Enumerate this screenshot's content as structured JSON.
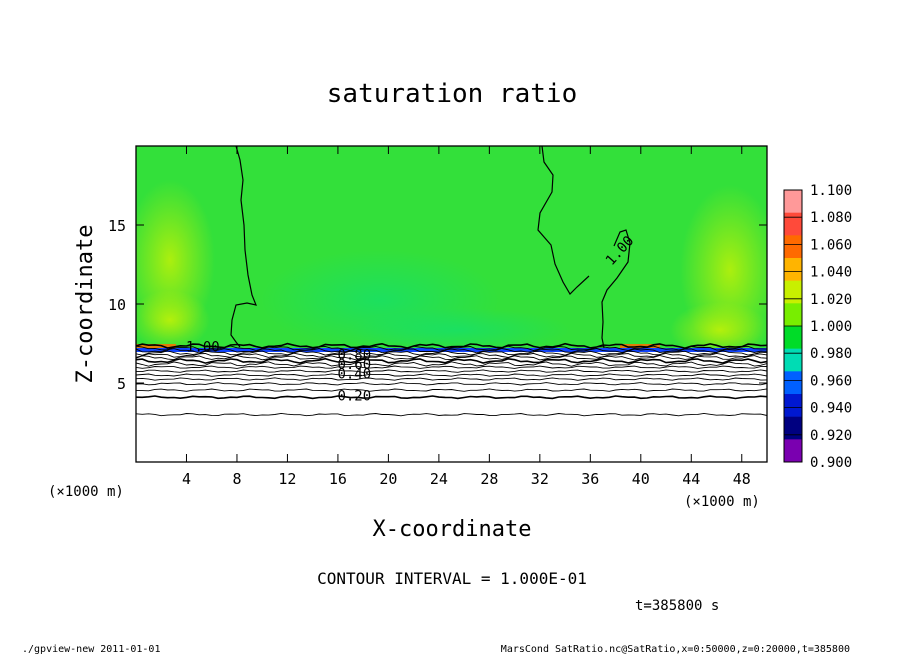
{
  "chart_data": {
    "type": "heatmap",
    "title": "saturation ratio",
    "xlabel": "X-coordinate",
    "ylabel": "Z-coordinate",
    "x_unit": "(×1000 m)",
    "y_unit": "(×1000 m)",
    "xlim": [
      0,
      50
    ],
    "ylim": [
      0,
      20
    ],
    "x_ticks": [
      4,
      8,
      12,
      16,
      20,
      24,
      28,
      32,
      36,
      40,
      44,
      48
    ],
    "y_ticks": [
      5,
      10,
      15
    ],
    "contour_labels": [
      {
        "text": "1.00",
        "x": 5.3,
        "z": 7.3
      },
      {
        "text": "1.00",
        "x": 38.3,
        "z": 13.4,
        "angle": -48
      },
      {
        "text": "0.80",
        "x": 17.3,
        "z": 6.8
      },
      {
        "text": "0.60",
        "x": 17.3,
        "z": 6.2
      },
      {
        "text": "0.40",
        "x": 17.3,
        "z": 5.6
      },
      {
        "text": "0.20",
        "x": 17.3,
        "z": 4.2
      }
    ],
    "colorbar": {
      "levels": [
        "1.100",
        "1.080",
        "1.060",
        "1.040",
        "1.020",
        "1.000",
        "0.980",
        "0.960",
        "0.940",
        "0.920",
        "0.900"
      ],
      "colors": [
        "#ff9999",
        "#ff4a3a",
        "#ff6a00",
        "#ffb400",
        "#c8f000",
        "#78ee00",
        "#00dc28",
        "#00dcb4",
        "#0060ff",
        "#0018d0",
        "#000080",
        "#7a00b0"
      ]
    },
    "fill_colors": {
      "upper": "#33e03a",
      "lower": "#ffffff",
      "band": "#1144ff"
    },
    "contour_interval_text": "CONTOUR INTERVAL = 1.000E-01",
    "time_text": "t=385800 s"
  },
  "footer": {
    "left": "./gpview-new  2011-01-01",
    "right": "MarsCond_SatRatio.nc@SatRatio,x=0:50000,z=0:20000,t=385800"
  }
}
